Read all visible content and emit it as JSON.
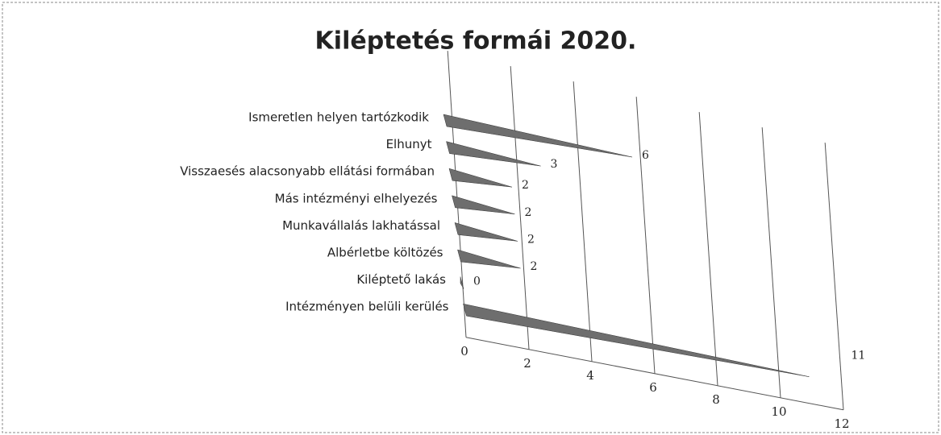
{
  "chart_data": {
    "type": "bar3d",
    "title": "Kiléptetés formái 2020.",
    "categories": [
      "Ismeretlen helyen tartózkodik",
      "Elhunyt",
      "Visszaesés alacsonyabb ellátási formában",
      "Más intézményi elhelyezés",
      "Munkavállalás lakhatással",
      "Albérletbe költözés",
      "Kiléptető lakás",
      "Intézményen belüli kerülés"
    ],
    "values": [
      6,
      3,
      2,
      2,
      2,
      2,
      0,
      11
    ],
    "color": "#6e6e6e",
    "xlim": [
      0,
      12
    ],
    "xticks": [
      0,
      2,
      4,
      6,
      8,
      10,
      12
    ],
    "grid": true
  }
}
